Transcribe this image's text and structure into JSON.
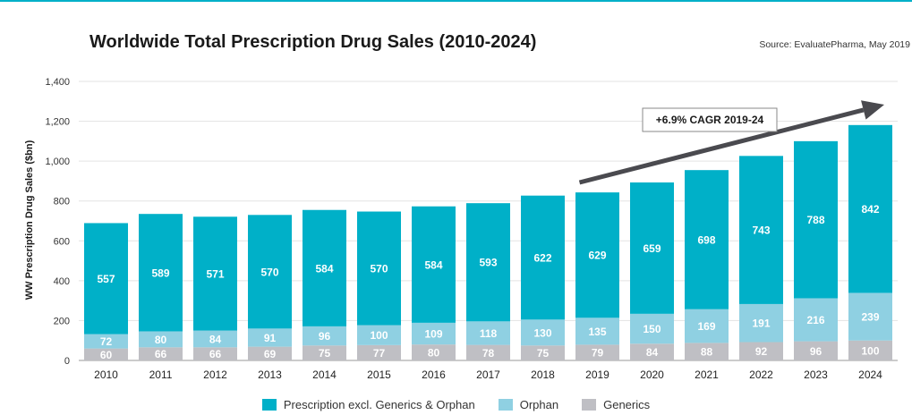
{
  "title": "Worldwide Total Prescription Drug Sales (2010-2024)",
  "source": "Source: EvaluatePharma, May 2019",
  "colors": {
    "rx": "#00b0c8",
    "orphan": "#8fd0e2",
    "generics": "#bfbfc4",
    "arrow": "#4a4a4f"
  },
  "annotation": "+6.9% CAGR 2019-24",
  "chart_data": {
    "type": "bar",
    "stacked": true,
    "categories": [
      "2010",
      "2011",
      "2012",
      "2013",
      "2014",
      "2015",
      "2016",
      "2017",
      "2018",
      "2019",
      "2020",
      "2021",
      "2022",
      "2023",
      "2024"
    ],
    "series": [
      {
        "name": "Generics",
        "values": [
          60,
          66,
          66,
          69,
          75,
          77,
          80,
          78,
          75,
          79,
          84,
          88,
          92,
          96,
          100
        ]
      },
      {
        "name": "Orphan",
        "values": [
          72,
          80,
          84,
          91,
          96,
          100,
          109,
          118,
          130,
          135,
          150,
          169,
          191,
          216,
          239
        ]
      },
      {
        "name": "Prescription excl. Generics & Orphan",
        "values": [
          557,
          589,
          571,
          570,
          584,
          570,
          584,
          593,
          622,
          629,
          659,
          698,
          743,
          788,
          842
        ]
      }
    ],
    "ylabel": "WW Prescription Drug Sales ($bn)",
    "ylim": [
      0,
      1400
    ],
    "yticks": [
      "0",
      "200",
      "400",
      "600",
      "800",
      "1,000",
      "1,200",
      "1,400"
    ],
    "grid": true,
    "legend": [
      "Prescription excl. Generics & Orphan",
      "Orphan",
      "Generics"
    ],
    "legend_position": "bottom"
  }
}
